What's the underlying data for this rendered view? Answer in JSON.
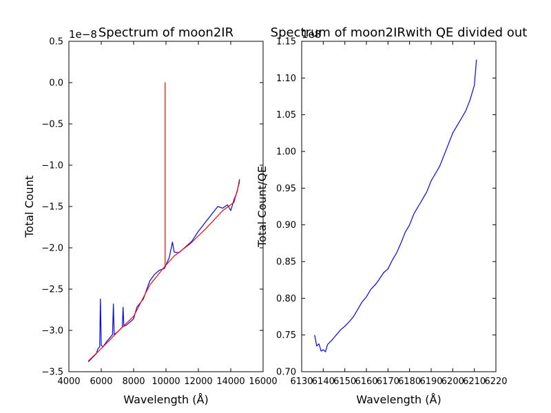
{
  "chart_data": [
    {
      "type": "line",
      "title": "Spectrum of moon2IR",
      "xlabel": "Wavelength (Å)",
      "ylabel": "Total Count",
      "offset_text": "1e−8",
      "xlim": [
        4000,
        16000
      ],
      "ylim": [
        -3.5,
        0.5
      ],
      "xticks": [
        4000,
        6000,
        8000,
        10000,
        12000,
        14000,
        16000
      ],
      "yticks": [
        -3.5,
        -3.0,
        -2.5,
        -2.0,
        -1.5,
        -1.0,
        -0.5,
        0.0,
        0.5
      ],
      "xtick_labels": [
        "4000",
        "6000",
        "8000",
        "10000",
        "12000",
        "14000",
        "16000"
      ],
      "ytick_labels": [
        "−3.5",
        "−3.0",
        "−2.5",
        "−2.0",
        "−1.5",
        "−1.0",
        "−0.5",
        "0.0",
        "0.5"
      ],
      "grid": false,
      "series": [
        {
          "color": "#0000ff",
          "x": [
            5200,
            5500,
            5700,
            5800,
            5900,
            5950,
            6000,
            6100,
            6400,
            6700,
            6750,
            6800,
            7000,
            7300,
            7350,
            7400,
            7600,
            8000,
            8200,
            8600,
            9000,
            9300,
            9600,
            9900,
            10200,
            10400,
            10500,
            10800,
            11200,
            11600,
            12000,
            12400,
            12800,
            13200,
            13500,
            13800,
            14000,
            14200,
            14400,
            14550
          ],
          "y": [
            -3.38,
            -3.32,
            -3.28,
            -3.22,
            -3.2,
            -2.62,
            -3.18,
            -3.2,
            -3.12,
            -3.05,
            -2.68,
            -3.05,
            -3.02,
            -2.96,
            -2.72,
            -2.95,
            -2.93,
            -2.86,
            -2.72,
            -2.62,
            -2.4,
            -2.32,
            -2.27,
            -2.25,
            -2.12,
            -1.93,
            -2.05,
            -2.06,
            -1.99,
            -1.92,
            -1.8,
            -1.7,
            -1.6,
            -1.5,
            -1.52,
            -1.48,
            -1.55,
            -1.42,
            -1.32,
            -1.17
          ]
        },
        {
          "color": "#ff0000",
          "x": [
            5200,
            6000,
            7000,
            8000,
            9000,
            9950,
            9950,
            9950,
            10500,
            11500,
            12500,
            13500,
            14200,
            14550
          ],
          "y": [
            -3.37,
            -3.22,
            -3.02,
            -2.83,
            -2.45,
            -2.22,
            0.0,
            -2.22,
            -2.1,
            -1.95,
            -1.76,
            -1.55,
            -1.45,
            -1.2
          ]
        }
      ]
    },
    {
      "type": "line",
      "title": "Spectrum of moon2IRwith QE divided out",
      "xlabel": "Wavelength (Å)",
      "ylabel": "Total Count/QE",
      "offset_text": "1e8",
      "xlim": [
        6130,
        6220
      ],
      "ylim": [
        0.7,
        1.15
      ],
      "xticks": [
        6130,
        6140,
        6150,
        6160,
        6170,
        6180,
        6190,
        6200,
        6210,
        6220
      ],
      "yticks": [
        0.7,
        0.75,
        0.8,
        0.85,
        0.9,
        0.95,
        1.0,
        1.05,
        1.1,
        1.15
      ],
      "xtick_labels": [
        "6130",
        "6140",
        "6150",
        "6160",
        "6170",
        "6180",
        "6190",
        "6200",
        "6210",
        "6220"
      ],
      "ytick_labels": [
        "0.70",
        "0.75",
        "0.80",
        "0.85",
        "0.90",
        "0.95",
        "1.00",
        "1.05",
        "1.10",
        "1.15"
      ],
      "grid": false,
      "series": [
        {
          "color": "#0000ff",
          "x": [
            6136,
            6137,
            6138,
            6139,
            6140,
            6141,
            6142,
            6144,
            6146,
            6148,
            6150,
            6152,
            6154,
            6156,
            6158,
            6160,
            6162,
            6164,
            6166,
            6168,
            6170,
            6172,
            6174,
            6176,
            6178,
            6180,
            6182,
            6184,
            6186,
            6188,
            6190,
            6192,
            6194,
            6196,
            6198,
            6200,
            6202,
            6204,
            6206,
            6208,
            6210,
            6211
          ],
          "y": [
            0.75,
            0.735,
            0.738,
            0.728,
            0.73,
            0.727,
            0.737,
            0.743,
            0.75,
            0.757,
            0.762,
            0.768,
            0.775,
            0.785,
            0.795,
            0.802,
            0.812,
            0.818,
            0.826,
            0.835,
            0.84,
            0.852,
            0.862,
            0.875,
            0.89,
            0.9,
            0.915,
            0.925,
            0.935,
            0.945,
            0.96,
            0.97,
            0.98,
            0.995,
            1.01,
            1.025,
            1.035,
            1.045,
            1.055,
            1.07,
            1.09,
            1.125
          ]
        }
      ]
    }
  ]
}
